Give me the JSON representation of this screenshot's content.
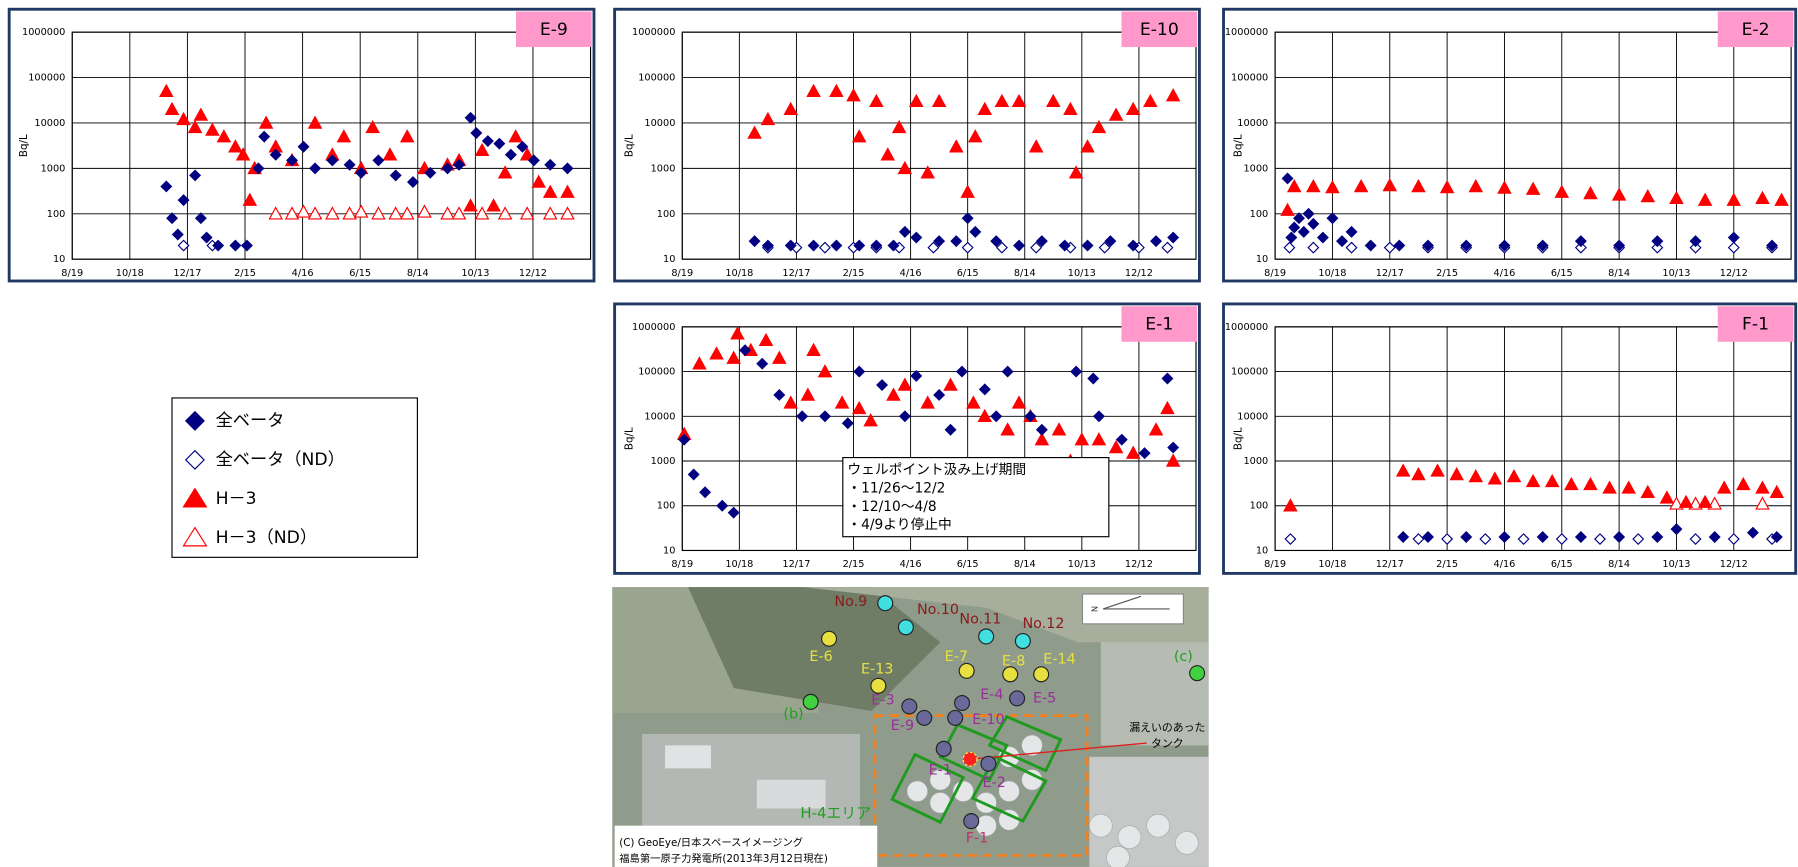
{
  "chart_data": [
    {
      "type": "scatter",
      "title": "E-9",
      "y_label": "Bq/L",
      "log_y": true,
      "grid": true,
      "xlim": [
        0,
        540
      ],
      "ylim": [
        10,
        1000000
      ],
      "xticks": [
        {
          "value": 0,
          "label": "8/19"
        },
        {
          "value": 60,
          "label": "10/18"
        },
        {
          "value": 120,
          "label": "12/17"
        },
        {
          "value": 180,
          "label": "2/15"
        },
        {
          "value": 240,
          "label": "4/16"
        },
        {
          "value": 300,
          "label": "6/15"
        },
        {
          "value": 360,
          "label": "8/14"
        },
        {
          "value": 420,
          "label": "10/13"
        },
        {
          "value": 480,
          "label": "12/12"
        }
      ],
      "yticks": [
        10,
        100,
        1000,
        10000,
        100000,
        1000000
      ],
      "series": [
        {
          "x": [
            98,
            104,
            110,
            116,
            128,
            134,
            140,
            152,
            170,
            182,
            194,
            200,
            212,
            229,
            241,
            253,
            271,
            289,
            301,
            319,
            337,
            355,
            373,
            391,
            403,
            415,
            421,
            433,
            445,
            457,
            469,
            481,
            498,
            516
          ],
          "values": [
            400,
            80,
            35,
            200,
            700,
            80,
            30,
            20,
            20,
            20,
            1000,
            5000,
            2000,
            1500,
            3000,
            1000,
            1500,
            1200,
            800,
            1500,
            700,
            500,
            800,
            1000,
            1200,
            13000,
            6000,
            4000,
            3500,
            2000,
            3000,
            1500,
            1200,
            1000
          ]
        },
        {
          "x": [
            116,
            146
          ],
          "values": [
            20,
            20
          ]
        },
        {
          "x": [
            98,
            104,
            116,
            128,
            134,
            146,
            158,
            170,
            178,
            185,
            190,
            202,
            212,
            229,
            253,
            271,
            283,
            301,
            313,
            331,
            349,
            367,
            391,
            403,
            415,
            427,
            439,
            451,
            462,
            474,
            486,
            498,
            516
          ],
          "values": [
            50000,
            20000,
            12000,
            8000,
            15000,
            7000,
            5000,
            3000,
            2000,
            200,
            1000,
            10000,
            3000,
            1500,
            10000,
            2000,
            5000,
            1000,
            8000,
            2000,
            5000,
            1000,
            1200,
            1500,
            150,
            2500,
            150,
            800,
            5000,
            2000,
            500,
            300,
            300
          ]
        },
        {
          "x": [
            212,
            229,
            241,
            253,
            271,
            289,
            301,
            319,
            337,
            349,
            367,
            391,
            403,
            427,
            451,
            474,
            498,
            516
          ],
          "values": [
            100,
            100,
            110,
            100,
            100,
            100,
            110,
            100,
            100,
            100,
            110,
            100,
            100,
            100,
            100,
            100,
            100,
            100
          ]
        }
      ]
    },
    {
      "type": "scatter",
      "title": "E-10",
      "y_label": "Bq/L",
      "log_y": true,
      "grid": true,
      "xlim": [
        0,
        540
      ],
      "ylim": [
        10,
        1000000
      ],
      "xticks": [
        {
          "value": 0,
          "label": "8/19"
        },
        {
          "value": 60,
          "label": "10/18"
        },
        {
          "value": 120,
          "label": "12/17"
        },
        {
          "value": 180,
          "label": "2/15"
        },
        {
          "value": 240,
          "label": "4/16"
        },
        {
          "value": 300,
          "label": "6/15"
        },
        {
          "value": 360,
          "label": "8/14"
        },
        {
          "value": 420,
          "label": "10/13"
        },
        {
          "value": 480,
          "label": "12/12"
        }
      ],
      "yticks": [
        10,
        100,
        1000,
        10000,
        100000,
        1000000
      ],
      "series": [
        {
          "x": [
            76,
            90,
            114,
            138,
            162,
            186,
            204,
            222,
            234,
            246,
            270,
            288,
            300,
            308,
            330,
            354,
            378,
            402,
            426,
            450,
            474,
            498,
            516
          ],
          "values": [
            25,
            20,
            20,
            20,
            20,
            20,
            20,
            20,
            40,
            30,
            25,
            25,
            80,
            40,
            25,
            20,
            25,
            20,
            20,
            25,
            20,
            25,
            30
          ]
        },
        {
          "x": [
            90,
            120,
            150,
            180,
            204,
            228,
            264,
            300,
            336,
            372,
            408,
            444,
            480,
            510
          ],
          "values": [
            18,
            18,
            18,
            18,
            18,
            18,
            18,
            18,
            18,
            18,
            18,
            18,
            18,
            18
          ]
        },
        {
          "x": [
            76,
            90,
            114,
            138,
            162,
            180,
            186,
            204,
            216,
            228,
            234,
            246,
            258,
            270,
            288,
            300,
            308,
            318,
            336,
            354,
            372,
            390,
            408,
            414,
            426,
            438,
            456,
            474,
            492,
            516
          ],
          "values": [
            6000,
            12000,
            20000,
            50000,
            50000,
            40000,
            5000,
            30000,
            2000,
            8000,
            1000,
            30000,
            800,
            30000,
            3000,
            300,
            5000,
            20000,
            30000,
            30000,
            3000,
            30000,
            20000,
            800,
            3000,
            8000,
            15000,
            20000,
            30000,
            40000
          ]
        },
        {
          "x": [],
          "values": []
        }
      ]
    },
    {
      "type": "scatter",
      "title": "E-2",
      "y_label": "Bq/L",
      "log_y": true,
      "grid": true,
      "xlim": [
        0,
        540
      ],
      "ylim": [
        10,
        1000000
      ],
      "xticks": [
        {
          "value": 0,
          "label": "8/19"
        },
        {
          "value": 60,
          "label": "10/18"
        },
        {
          "value": 120,
          "label": "12/17"
        },
        {
          "value": 180,
          "label": "2/15"
        },
        {
          "value": 240,
          "label": "4/16"
        },
        {
          "value": 300,
          "label": "6/15"
        },
        {
          "value": 360,
          "label": "8/14"
        },
        {
          "value": 420,
          "label": "10/13"
        },
        {
          "value": 480,
          "label": "12/12"
        }
      ],
      "yticks": [
        10,
        100,
        1000,
        10000,
        100000,
        1000000
      ],
      "series": [
        {
          "x": [
            13,
            17,
            20,
            25,
            30,
            35,
            40,
            50,
            60,
            70,
            80,
            100,
            130,
            160,
            200,
            240,
            280,
            320,
            360,
            400,
            440,
            480,
            520
          ],
          "values": [
            600,
            30,
            50,
            80,
            40,
            100,
            60,
            30,
            80,
            25,
            40,
            20,
            20,
            20,
            20,
            20,
            20,
            25,
            20,
            25,
            25,
            30,
            20
          ]
        },
        {
          "x": [
            15,
            40,
            80,
            120,
            160,
            200,
            240,
            280,
            320,
            360,
            400,
            440,
            480,
            520
          ],
          "values": [
            18,
            18,
            18,
            18,
            18,
            18,
            18,
            18,
            18,
            18,
            18,
            18,
            18,
            18
          ]
        },
        {
          "x": [
            13,
            20,
            40,
            60,
            90,
            120,
            150,
            180,
            210,
            240,
            270,
            300,
            330,
            360,
            390,
            420,
            450,
            480,
            510,
            530
          ],
          "values": [
            120,
            400,
            400,
            380,
            400,
            420,
            400,
            380,
            400,
            370,
            350,
            300,
            280,
            260,
            240,
            220,
            200,
            200,
            220,
            200
          ]
        },
        {
          "x": [],
          "values": []
        }
      ]
    },
    {
      "type": "scatter",
      "title": "E-1",
      "y_label": "Bq/L",
      "log_y": true,
      "grid": true,
      "xlim": [
        0,
        540
      ],
      "ylim": [
        10,
        1000000
      ],
      "xticks": [
        {
          "value": 0,
          "label": "8/19"
        },
        {
          "value": 60,
          "label": "10/18"
        },
        {
          "value": 120,
          "label": "12/17"
        },
        {
          "value": 180,
          "label": "2/15"
        },
        {
          "value": 240,
          "label": "4/16"
        },
        {
          "value": 300,
          "label": "6/15"
        },
        {
          "value": 360,
          "label": "8/14"
        },
        {
          "value": 420,
          "label": "10/13"
        },
        {
          "value": 480,
          "label": "12/12"
        }
      ],
      "yticks": [
        10,
        100,
        1000,
        10000,
        100000,
        1000000
      ],
      "annotation": [
        "ウェルポイント汲み上げ期間",
        "・11/26～12/2",
        "・12/10～4/8",
        "・4/9より停止中"
      ],
      "series": [
        {
          "x": [
            2,
            12,
            24,
            42,
            54,
            66,
            84,
            102,
            126,
            150,
            174,
            186,
            210,
            234,
            246,
            270,
            282,
            294,
            318,
            330,
            342,
            366,
            378,
            414,
            432,
            438,
            462,
            486,
            510,
            516
          ],
          "values": [
            3000,
            500,
            200,
            100,
            70,
            300000,
            150000,
            30000,
            10000,
            10000,
            7000,
            100000,
            50000,
            10000,
            80000,
            30000,
            5000,
            100000,
            40000,
            10000,
            100000,
            10000,
            5000,
            100000,
            70000,
            10000,
            3000,
            1500,
            70000,
            2000
          ]
        },
        {
          "x": [],
          "values": []
        },
        {
          "x": [
            2,
            18,
            36,
            54,
            58,
            72,
            88,
            102,
            114,
            132,
            138,
            150,
            168,
            186,
            198,
            222,
            234,
            258,
            282,
            306,
            318,
            342,
            354,
            366,
            378,
            396,
            408,
            420,
            438,
            456,
            474,
            498,
            510,
            516
          ],
          "values": [
            4000,
            150000,
            250000,
            200000,
            700000,
            300000,
            500000,
            200000,
            20000,
            30000,
            300000,
            100000,
            20000,
            15000,
            8000,
            30000,
            50000,
            20000,
            50000,
            20000,
            10000,
            5000,
            20000,
            10000,
            3000,
            5000,
            1000,
            3000,
            3000,
            2000,
            1500,
            5000,
            15000,
            1000
          ]
        },
        {
          "x": [],
          "values": []
        }
      ]
    },
    {
      "type": "scatter",
      "title": "F-1",
      "y_label": "Bq/L",
      "log_y": true,
      "grid": true,
      "xlim": [
        0,
        540
      ],
      "ylim": [
        10,
        1000000
      ],
      "xticks": [
        {
          "value": 0,
          "label": "8/19"
        },
        {
          "value": 60,
          "label": "10/18"
        },
        {
          "value": 120,
          "label": "12/17"
        },
        {
          "value": 180,
          "label": "2/15"
        },
        {
          "value": 240,
          "label": "4/16"
        },
        {
          "value": 300,
          "label": "6/15"
        },
        {
          "value": 360,
          "label": "8/14"
        },
        {
          "value": 420,
          "label": "10/13"
        },
        {
          "value": 480,
          "label": "12/12"
        }
      ],
      "yticks": [
        10,
        100,
        1000,
        10000,
        100000,
        1000000
      ],
      "series": [
        {
          "x": [
            134,
            160,
            200,
            240,
            280,
            320,
            360,
            400,
            420,
            460,
            500,
            525
          ],
          "values": [
            20,
            20,
            20,
            20,
            20,
            20,
            20,
            20,
            30,
            20,
            25,
            20
          ]
        },
        {
          "x": [
            16,
            150,
            180,
            220,
            260,
            300,
            340,
            380,
            440,
            480,
            520
          ],
          "values": [
            18,
            18,
            18,
            18,
            18,
            18,
            18,
            18,
            18,
            18,
            18
          ]
        },
        {
          "x": [
            16,
            134,
            150,
            170,
            190,
            210,
            230,
            250,
            270,
            290,
            310,
            330,
            350,
            370,
            390,
            410,
            430,
            450,
            470,
            490,
            510,
            525
          ],
          "values": [
            100,
            600,
            500,
            600,
            500,
            450,
            400,
            450,
            350,
            350,
            300,
            300,
            250,
            250,
            200,
            150,
            120,
            120,
            250,
            300,
            250,
            200
          ]
        },
        {
          "x": [
            420,
            440,
            460,
            510
          ],
          "values": [
            110,
            110,
            110,
            110
          ]
        }
      ]
    }
  ],
  "legend": {
    "items": [
      {
        "name": "全ベータ",
        "color": "#000080",
        "marker": "diamond",
        "filled": true
      },
      {
        "name": "全ベータ（ND）",
        "color": "#000080",
        "marker": "diamond",
        "filled": false
      },
      {
        "name": "H－3",
        "color": "#ff0000",
        "marker": "triangle",
        "filled": true
      },
      {
        "name": "H－3（ND）",
        "color": "#ff0000",
        "marker": "triangle",
        "filled": false
      }
    ]
  },
  "map": {
    "nodes": [
      {
        "label": "No.9"
      },
      {
        "label": "No.10"
      },
      {
        "label": "No.11"
      },
      {
        "label": "No.12"
      },
      {
        "label": "E-6"
      },
      {
        "label": "E-13"
      },
      {
        "label": "E-7"
      },
      {
        "label": "E-8"
      },
      {
        "label": "E-14"
      },
      {
        "label": "(c)"
      },
      {
        "label": "(b)"
      },
      {
        "label": "E-3"
      },
      {
        "label": "E-9"
      },
      {
        "label": "E-10"
      },
      {
        "label": "E-4"
      },
      {
        "label": "E-5"
      },
      {
        "label": "E-1"
      },
      {
        "label": "E-2"
      },
      {
        "label": "F-1"
      }
    ],
    "leak_label": [
      "漏えいのあった",
      "タンク"
    ],
    "area_label": "H-4エリア",
    "north": "N",
    "credit": [
      "(C) GeoEye/日本スペースイメージング",
      "福島第一原子力発電所(2013年3月12日現在)"
    ]
  }
}
